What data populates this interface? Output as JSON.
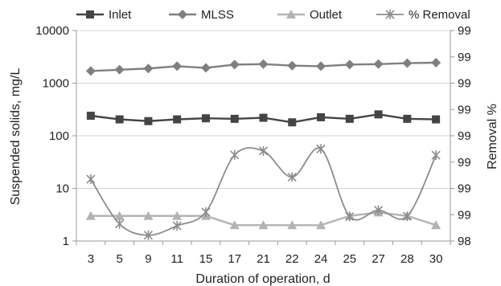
{
  "chart_data": {
    "type": "line",
    "xlabel": "Duration of operation, d",
    "ylabel": "Suspended solids, mg/L",
    "y2label": "Removal %",
    "categories": [
      "3",
      "5",
      "9",
      "11",
      "15",
      "17",
      "21",
      "22",
      "24",
      "25",
      "27",
      "28",
      "30"
    ],
    "y_scale": "log",
    "ylim": [
      1,
      10000
    ],
    "y_ticks": [
      "1",
      "10",
      "100",
      "1000",
      "10000"
    ],
    "y2_ticks": [
      "98",
      "99",
      "99",
      "99",
      "99",
      "99",
      "99",
      "99",
      "99"
    ],
    "grid": "horizontal",
    "legend_position": "top",
    "series": [
      {
        "name": "Inlet",
        "axis": "left",
        "marker": "square",
        "color": "#444444",
        "values": [
          240,
          205,
          190,
          205,
          215,
          210,
          220,
          180,
          225,
          210,
          255,
          210,
          205
        ]
      },
      {
        "name": "MLSS",
        "axis": "left",
        "marker": "diamond",
        "color": "#7f7f7f",
        "values": [
          1700,
          1800,
          1900,
          2100,
          1950,
          2250,
          2300,
          2150,
          2100,
          2250,
          2300,
          2400,
          2450
        ]
      },
      {
        "name": "Outlet",
        "axis": "left",
        "marker": "triangle",
        "color": "#b3b3b3",
        "values": [
          3,
          3,
          3,
          3,
          3,
          2,
          2,
          2,
          2,
          3,
          3.5,
          3,
          2
        ]
      },
      {
        "name": "% Removal",
        "axis": "right",
        "marker": "star",
        "color": "#8c8c8c",
        "values": [
          2.35,
          0.65,
          0.22,
          0.58,
          1.1,
          3.27,
          3.42,
          2.43,
          3.5,
          0.93,
          1.17,
          0.94,
          3.26
        ]
      }
    ]
  }
}
